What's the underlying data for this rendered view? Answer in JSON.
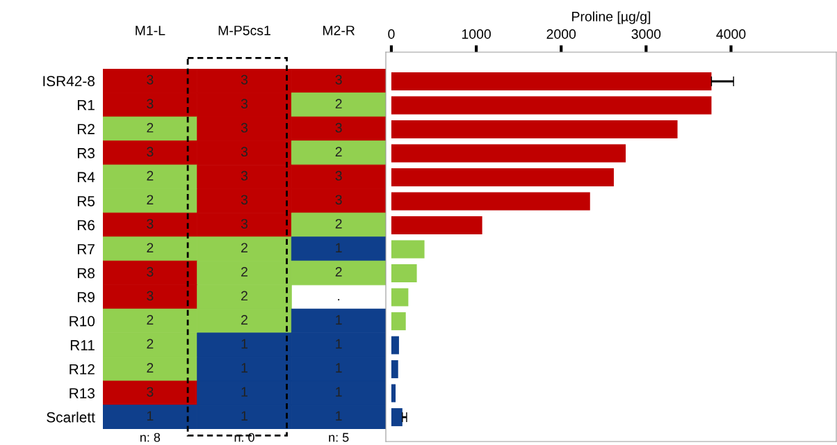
{
  "chart_data": [
    {
      "type": "heatmap",
      "categories": [
        "M1-L",
        "M-P5cs1",
        "M2-R"
      ],
      "y_categories": [
        "ISR42-8",
        "R1",
        "R2",
        "R3",
        "R4",
        "R5",
        "R6",
        "R7",
        "R8",
        "R9",
        "R10",
        "R11",
        "R12",
        "R13",
        "Scarlett"
      ],
      "cells": [
        [
          3,
          3,
          3
        ],
        [
          3,
          3,
          2
        ],
        [
          2,
          3,
          3
        ],
        [
          3,
          3,
          2
        ],
        [
          2,
          3,
          3
        ],
        [
          2,
          3,
          3
        ],
        [
          3,
          3,
          2
        ],
        [
          2,
          2,
          1
        ],
        [
          3,
          2,
          2
        ],
        [
          3,
          2,
          null
        ],
        [
          2,
          2,
          1
        ],
        [
          2,
          1,
          1
        ],
        [
          2,
          1,
          1
        ],
        [
          3,
          1,
          1
        ],
        [
          1,
          1,
          1
        ]
      ],
      "cell_labels": [
        [
          "3",
          "3",
          "3"
        ],
        [
          "3",
          "3",
          "2"
        ],
        [
          "2",
          "3",
          "3"
        ],
        [
          "3",
          "3",
          "2"
        ],
        [
          "2",
          "3",
          "3"
        ],
        [
          "2",
          "3",
          "3"
        ],
        [
          "3",
          "3",
          "2"
        ],
        [
          "2",
          "2",
          "1"
        ],
        [
          "3",
          "2",
          "2"
        ],
        [
          "3",
          "2",
          "."
        ],
        [
          "2",
          "2",
          "1"
        ],
        [
          "2",
          "1",
          "1"
        ],
        [
          "2",
          "1",
          "1"
        ],
        [
          "3",
          "1",
          "1"
        ],
        [
          "1",
          "1",
          "1"
        ]
      ],
      "colors": [
        "#0f3f8c",
        "#92d050",
        "#c00000"
      ],
      "annotations": [
        "n: 8",
        "n: 0",
        "n: 5"
      ]
    },
    {
      "type": "bar",
      "orientation": "horizontal",
      "xlabel": "Proline [µg/g]",
      "categories": [
        null,
        null,
        null,
        null,
        null,
        null,
        null,
        null,
        null,
        null,
        null,
        null,
        null,
        null,
        null
      ],
      "values": [
        3770,
        3770,
        3370,
        2760,
        2620,
        2340,
        1070,
        390,
        300,
        200,
        170,
        90,
        80,
        50,
        130
      ],
      "errors": [
        260,
        null,
        null,
        null,
        null,
        null,
        null,
        null,
        null,
        null,
        null,
        null,
        null,
        null,
        50
      ],
      "colors": [
        "#c00000",
        "#c00000",
        "#c00000",
        "#c00000",
        "#c00000",
        "#c00000",
        "#c00000",
        "#92d050",
        "#92d050",
        "#92d050",
        "#92d050",
        "#0f3f8c",
        "#0f3f8c",
        "#0f3f8c",
        "#0f3f8c"
      ],
      "xlim": [
        -65,
        5240
      ],
      "xticks": [
        0,
        1000,
        2000,
        3000,
        4000
      ],
      "tick_labels": "x"
    }
  ]
}
